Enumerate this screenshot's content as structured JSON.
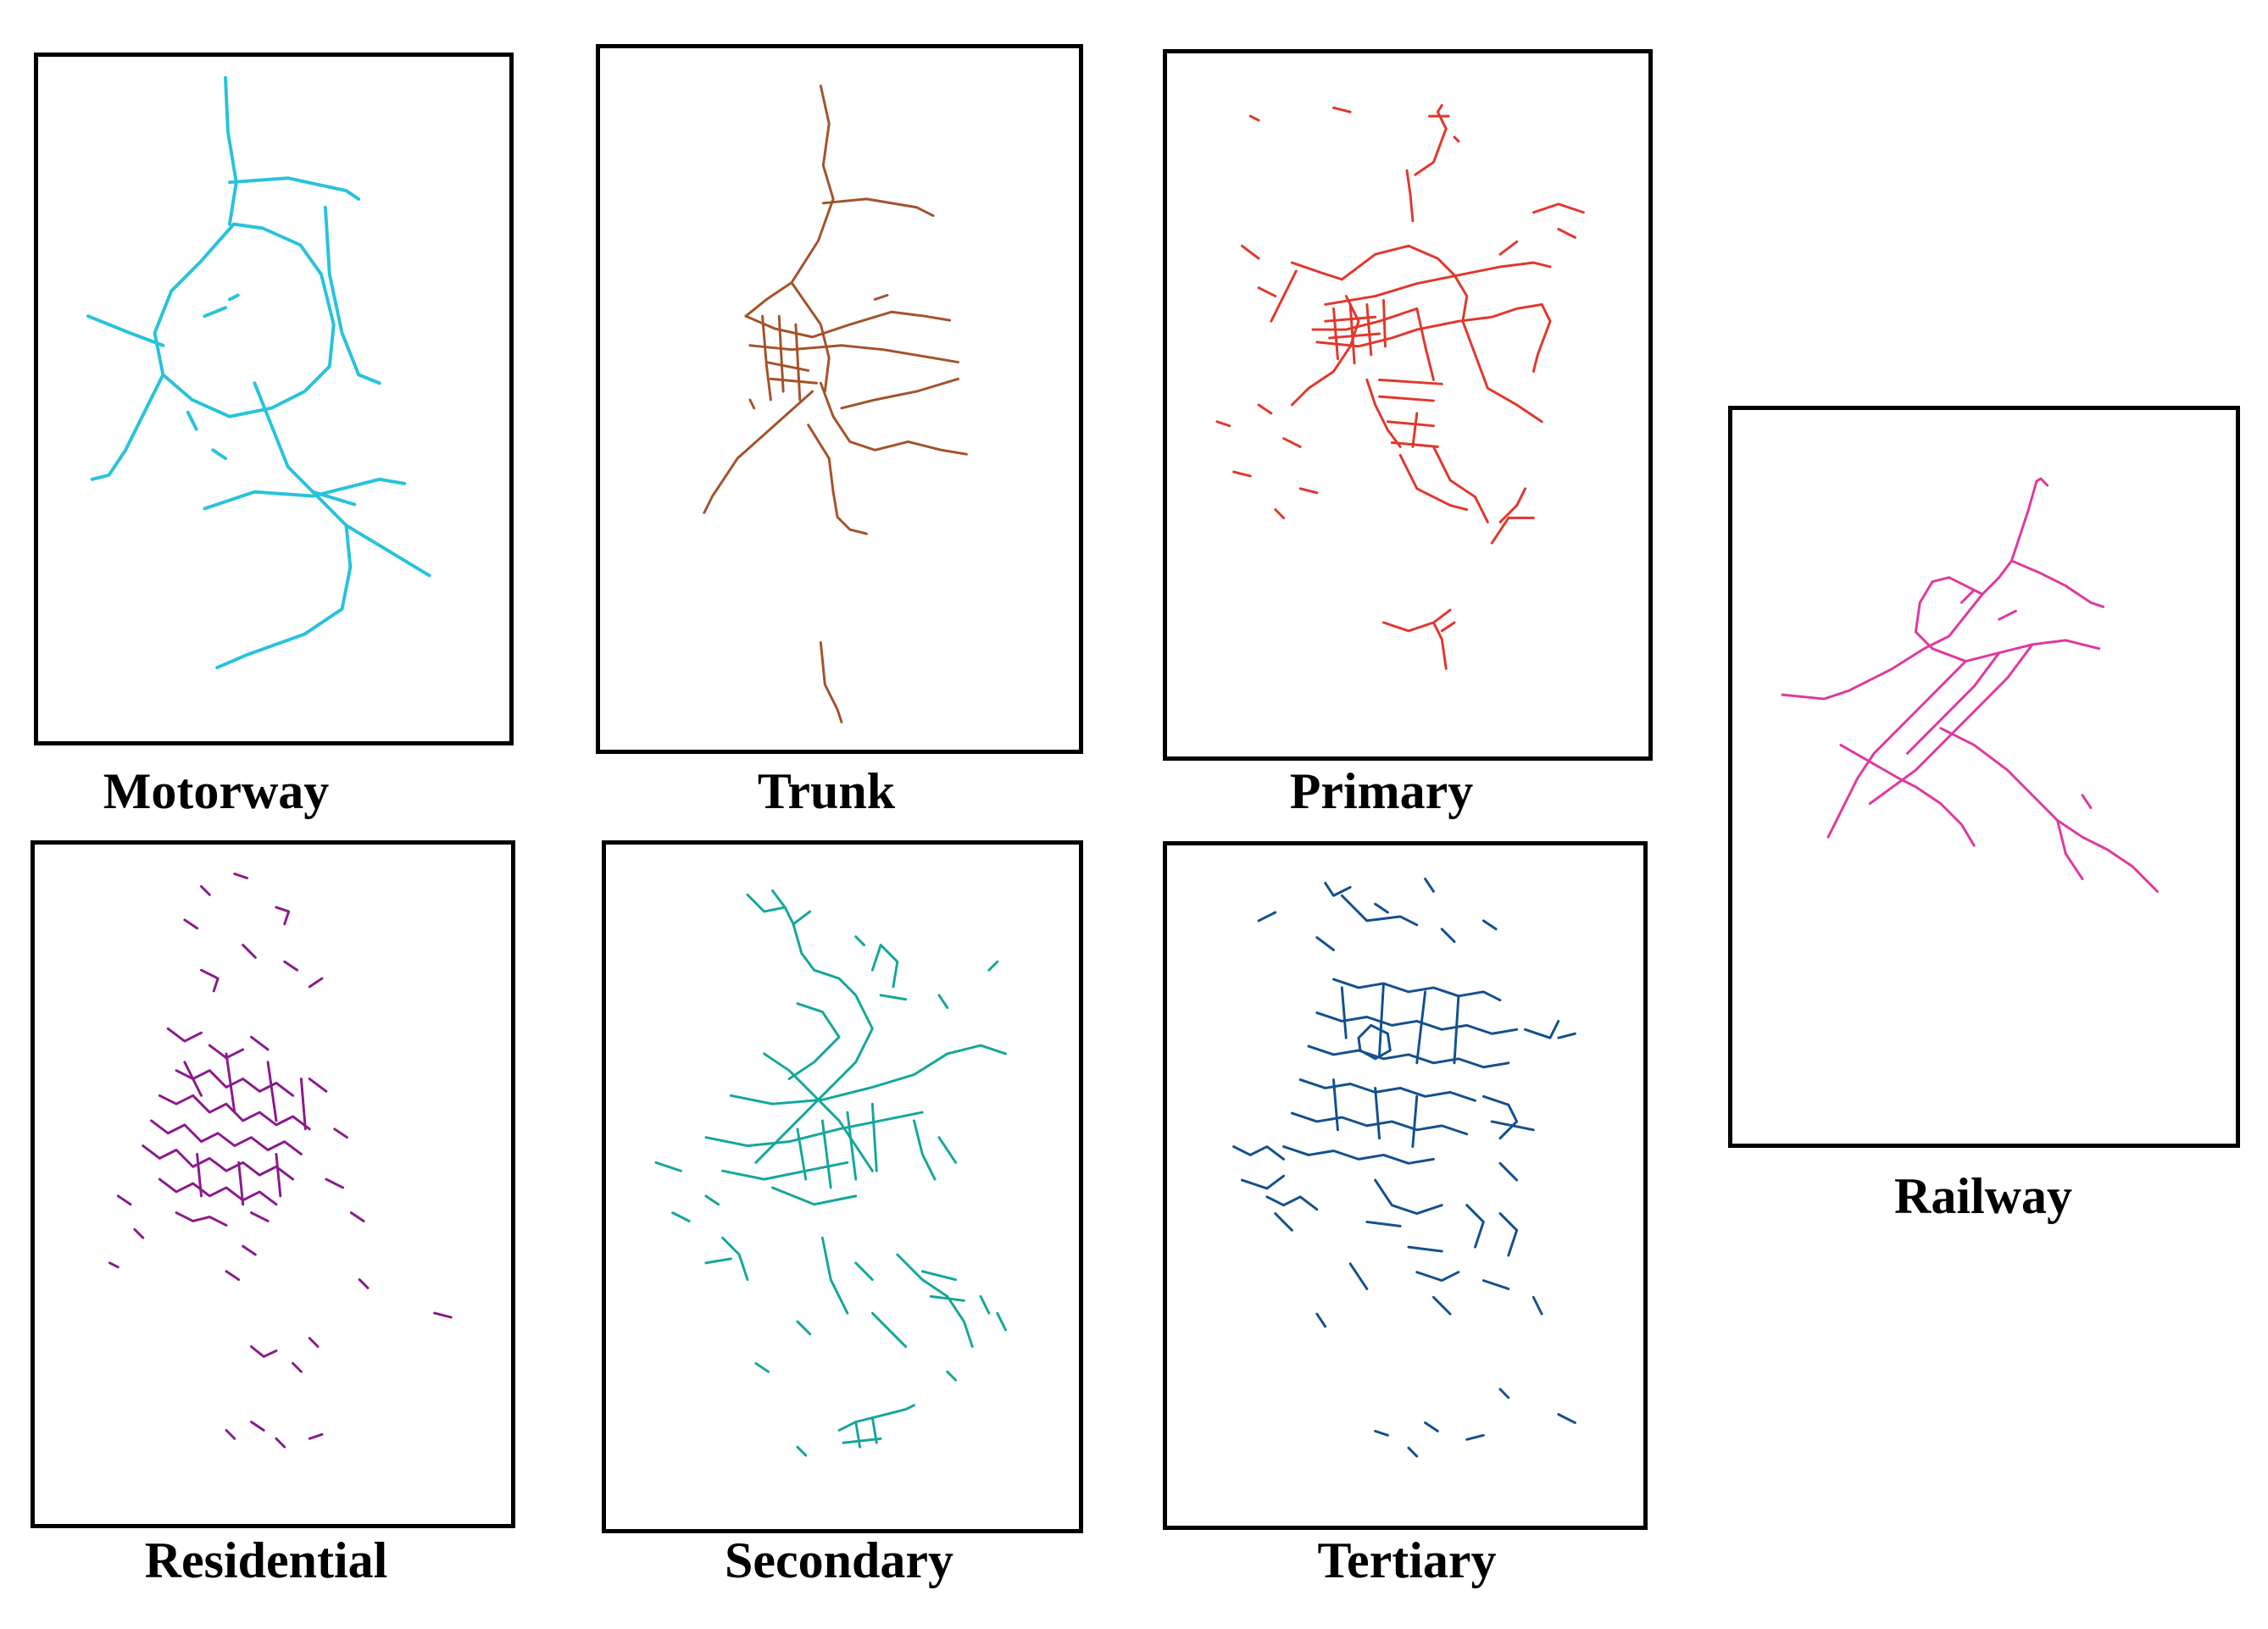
{
  "panels": [
    {
      "key": "motorway",
      "label": "Motorway",
      "color": "#27c3dc",
      "density": "sparse"
    },
    {
      "key": "trunk",
      "label": "Trunk",
      "color": "#a5522a",
      "density": "sparse"
    },
    {
      "key": "primary",
      "label": "Primary",
      "color": "#e2372b",
      "density": "medium"
    },
    {
      "key": "railway",
      "label": "Railway",
      "color": "#e0389f",
      "density": "sparse"
    },
    {
      "key": "residential",
      "label": "Residential",
      "color": "#8a1a8c",
      "density": "dense"
    },
    {
      "key": "secondary",
      "label": "Secondary",
      "color": "#14a79a",
      "density": "dense"
    },
    {
      "key": "tertiary",
      "label": "Tertiary",
      "color": "#13508f",
      "density": "dense"
    }
  ]
}
